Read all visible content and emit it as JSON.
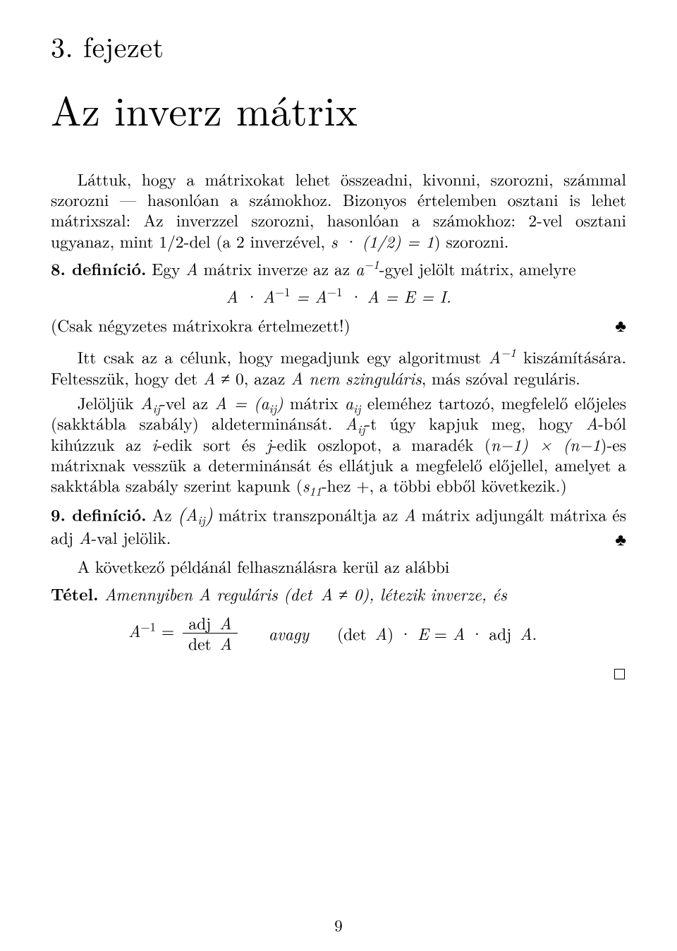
{
  "chapter": {
    "number_label": "3. fejezet",
    "title": "Az inverz mátrix"
  },
  "paragraphs": {
    "intro1": "Láttuk, hogy a mátrixokat lehet összeadni, kivonni, szorozni, számmal szorozni — hasonlóan a számokhoz. Bizonyos értelemben osztani is lehet mátrixszal: Az inverzzel szorozni, hasonlóan a számokhoz: 2-vel osztani ugyanaz, mint 1/2-del (a 2 inverzével, ",
    "intro1_math": "s · (1/2) = 1",
    "intro1_tail": ") szorozni.",
    "def8_head": "8. definíció.",
    "def8_body_a": " Egy ",
    "def8_body_b": " mátrix inverze az az ",
    "def8_body_c": "-gyel jelölt mátrix, amelyre",
    "def8_eq": "A · A⁻¹ = A⁻¹ · A = E = I.",
    "def8_close": "(Csak négyzetes mátrixokra értelmezett!)",
    "club": "♣",
    "p2": "Itt csak az a célunk, hogy megadjunk egy algoritmust ",
    "p2_tail": " kiszámítására. Feltesszük, hogy det ",
    "p2_tail2": " ≠ 0, azaz ",
    "p2_em": "A nem szinguláris",
    "p2_tail3": ", más szóval reguláris.",
    "p3a": "Jelöljük ",
    "p3b": "-vel az ",
    "p3c": " mátrix ",
    "p3d": " eleméhez tartozó, megfelelő előjeles (sakktábla szabály) aldeterminánsát. ",
    "p3e": "-t úgy kapjuk meg, hogy ",
    "p3f": "-ból kihúzzuk az ",
    "p3g": "-edik sort és ",
    "p3h": "-edik oszlopot, a maradék (",
    "p3i": ")-es mátrixnak vesszük a determinánsát és ellátjuk a megfelelő előjellel, amelyet a sakktábla szabály szerint kapunk (",
    "p3j": "-hez +, a többi ebből következik.)",
    "def9_head": "9. definíció.",
    "def9_a": " Az ",
    "def9_b": " mátrix transzponáltja az ",
    "def9_c": " mátrix adjungált mátrixa és adj ",
    "def9_d": "-val jelölik.",
    "p4": "A következő példánál felhasználásra kerül az alábbi",
    "thm_head": "Tétel.",
    "thm_body_a": " Amennyiben A reguláris (",
    "thm_body_b": "det A ≠ 0",
    "thm_body_c": "), létezik inverze, és",
    "eq_lhs": "A⁻¹",
    "eq_frac_num": "adj A",
    "eq_frac_den": "det A",
    "eq_avagy": "avagy",
    "eq_rhs": "(det A) · E = A · adj A.",
    "pagenum": "9"
  },
  "math": {
    "A": "A",
    "a_inv": "a⁻¹",
    "A_inv": "A⁻¹",
    "Aij": "Aᵢⱼ",
    "A_eq_aij": "A = (aᵢⱼ)",
    "aij": "aᵢⱼ",
    "i": "i",
    "j": "j",
    "nminus1": "n−1) × (n−1",
    "s11": "s₁₁",
    "big_Aij_par": "(Aᵢⱼ)"
  }
}
